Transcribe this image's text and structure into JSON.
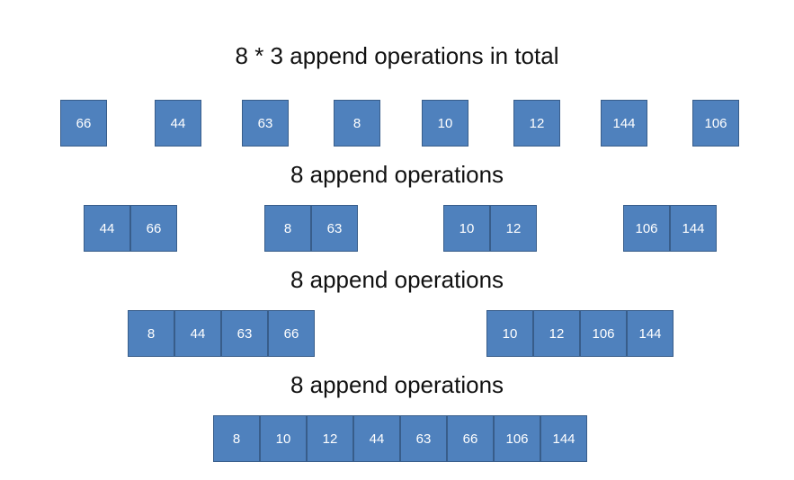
{
  "title": "8 * 3 append operations in total",
  "colors": {
    "cell_fill": "#4f81bd",
    "cell_border": "#385d8a",
    "cell_text": "#ffffff"
  },
  "rows": [
    {
      "caption": "",
      "groups": [
        [
          "66"
        ],
        [
          "44"
        ],
        [
          "63"
        ],
        [
          "8"
        ],
        [
          "10"
        ],
        [
          "12"
        ],
        [
          "144"
        ],
        [
          "106"
        ]
      ]
    },
    {
      "caption": "8 append operations",
      "groups": [
        [
          "44",
          "66"
        ],
        [
          "8",
          "63"
        ],
        [
          "10",
          "12"
        ],
        [
          "106",
          "144"
        ]
      ]
    },
    {
      "caption": "8 append operations",
      "groups": [
        [
          "8",
          "44",
          "63",
          "66"
        ],
        [
          "10",
          "12",
          "106",
          "144"
        ]
      ]
    },
    {
      "caption": "8 append operations",
      "groups": [
        [
          "8",
          "10",
          "12",
          "44",
          "63",
          "66",
          "106",
          "144"
        ]
      ]
    }
  ]
}
